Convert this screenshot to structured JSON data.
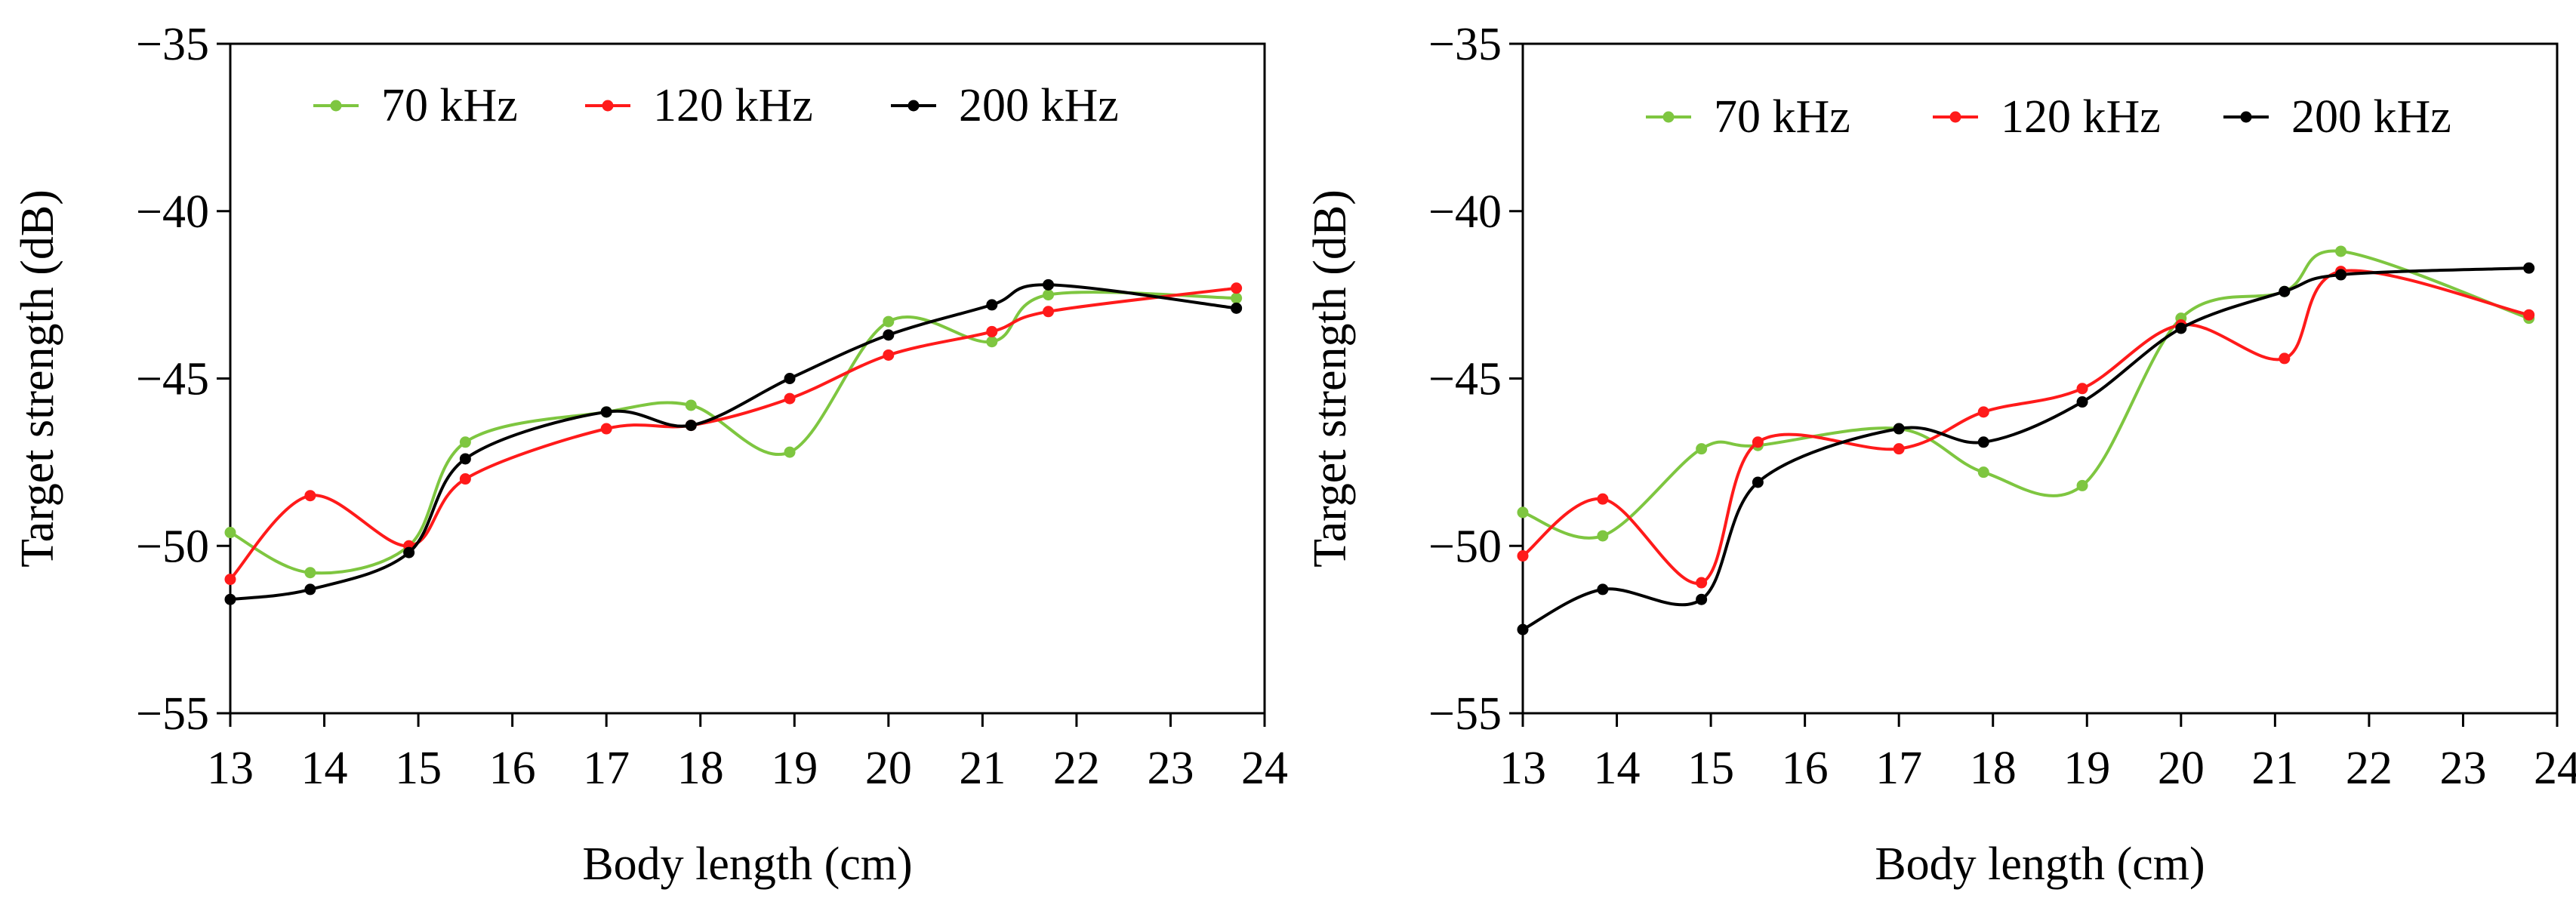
{
  "chart_data": [
    {
      "type": "line",
      "xlabel": "Body length (cm)",
      "ylabel": "Target strength (dB)",
      "xlim": [
        13,
        24
      ],
      "ylim": [
        -55,
        -35
      ],
      "xticks": [
        13,
        14,
        15,
        16,
        17,
        18,
        19,
        20,
        21,
        22,
        23,
        24
      ],
      "yticks": [
        -35,
        -40,
        -45,
        -50,
        -55
      ],
      "ytick_labels": [
        "−35",
        "−40",
        "−45",
        "−50",
        "−55"
      ],
      "grid": false,
      "legend": "top",
      "series": [
        {
          "name": "70 kHz",
          "color": "#7ec640",
          "x": [
            13.0,
            13.85,
            14.9,
            15.5,
            17.0,
            17.9,
            18.95,
            20.0,
            21.1,
            21.7,
            23.7
          ],
          "y": [
            -49.6,
            -50.8,
            -50.0,
            -46.9,
            -46.0,
            -45.8,
            -47.2,
            -43.3,
            -43.9,
            -42.5,
            -42.6
          ]
        },
        {
          "name": "120 kHz",
          "color": "#ff1a1a",
          "x": [
            13.0,
            13.85,
            14.9,
            15.5,
            17.0,
            17.9,
            18.95,
            20.0,
            21.1,
            21.7,
            23.7
          ],
          "y": [
            -51.0,
            -48.5,
            -50.0,
            -48.0,
            -46.5,
            -46.4,
            -45.6,
            -44.3,
            -43.6,
            -43.0,
            -42.3
          ]
        },
        {
          "name": "200 kHz",
          "color": "#000000",
          "x": [
            13.0,
            13.85,
            14.9,
            15.5,
            17.0,
            17.9,
            18.95,
            20.0,
            21.1,
            21.7,
            23.7
          ],
          "y": [
            -51.6,
            -51.3,
            -50.2,
            -47.4,
            -46.0,
            -46.4,
            -45.0,
            -43.7,
            -42.8,
            -42.2,
            -42.9
          ]
        }
      ]
    },
    {
      "type": "line",
      "xlabel": "Body length (cm)",
      "ylabel": "Target strength (dB)",
      "xlim": [
        13,
        24
      ],
      "ylim": [
        -55,
        -35
      ],
      "xticks": [
        13,
        14,
        15,
        16,
        17,
        18,
        19,
        20,
        21,
        22,
        23,
        24
      ],
      "yticks": [
        -35,
        -40,
        -45,
        -50,
        -55
      ],
      "ytick_labels": [
        "−35",
        "−40",
        "−45",
        "−50",
        "−55"
      ],
      "grid": false,
      "legend": "top",
      "series": [
        {
          "name": "70 kHz",
          "color": "#7ec640",
          "x": [
            13.0,
            13.85,
            14.9,
            15.5,
            17.0,
            17.9,
            18.95,
            20.0,
            21.1,
            21.7,
            23.7
          ],
          "y": [
            -49.0,
            -49.7,
            -47.1,
            -47.0,
            -46.5,
            -47.8,
            -48.2,
            -43.2,
            -42.4,
            -41.2,
            -43.2
          ]
        },
        {
          "name": "120 kHz",
          "color": "#ff1a1a",
          "x": [
            13.0,
            13.85,
            14.9,
            15.5,
            17.0,
            17.9,
            18.95,
            20.0,
            21.1,
            21.7,
            23.7
          ],
          "y": [
            -50.3,
            -48.6,
            -51.1,
            -46.9,
            -47.1,
            -46.0,
            -45.3,
            -43.4,
            -44.4,
            -41.8,
            -43.1
          ]
        },
        {
          "name": "200 kHz",
          "color": "#000000",
          "x": [
            13.0,
            13.85,
            14.9,
            15.5,
            17.0,
            17.9,
            18.95,
            20.0,
            21.1,
            21.7,
            23.7
          ],
          "y": [
            -52.5,
            -51.3,
            -51.6,
            -48.1,
            -46.5,
            -46.9,
            -45.7,
            -43.5,
            -42.4,
            -41.9,
            -41.7
          ]
        }
      ]
    }
  ]
}
